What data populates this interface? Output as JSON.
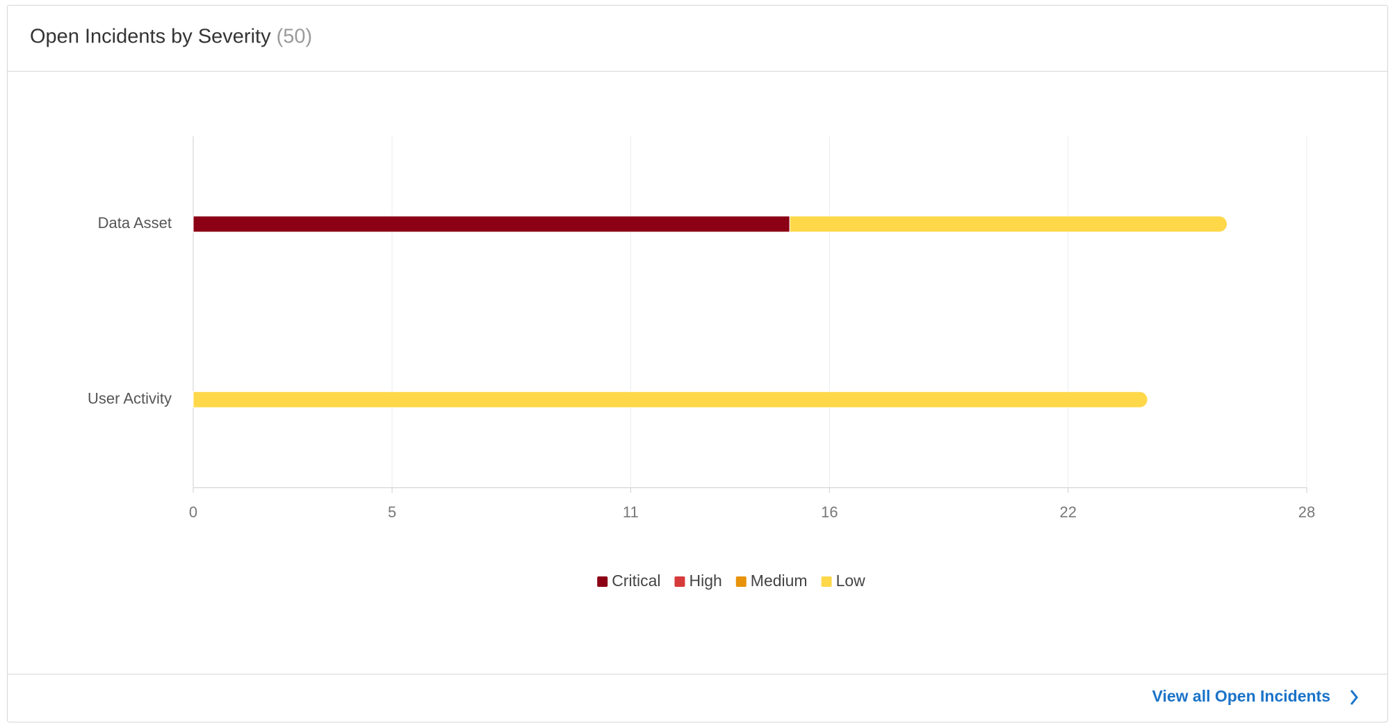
{
  "header": {
    "title": "Open Incidents by Severity",
    "count": "(50)"
  },
  "chart_data": {
    "type": "stacked-bar-horizontal",
    "categories": [
      "Data Asset",
      "User Activity"
    ],
    "series": [
      {
        "name": "Critical",
        "color": "#8b0014",
        "values": [
          15,
          0
        ]
      },
      {
        "name": "High",
        "color": "#d63b3b",
        "values": [
          0,
          0
        ]
      },
      {
        "name": "Medium",
        "color": "#e8930c",
        "values": [
          0,
          0
        ]
      },
      {
        "name": "Low",
        "color": "#ffd84a",
        "values": [
          11,
          24
        ]
      }
    ],
    "xlim": [
      0,
      28
    ],
    "xticks": [
      0,
      5,
      11,
      16,
      22,
      28
    ],
    "grid": true,
    "legend": "bottom"
  },
  "footer": {
    "link": "View all Open Incidents"
  }
}
